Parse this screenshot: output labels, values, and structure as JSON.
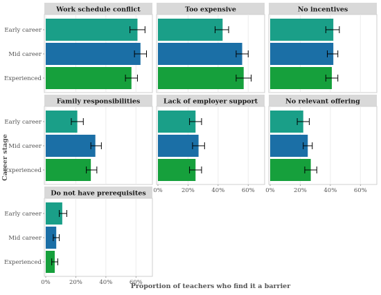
{
  "chart_data": {
    "type": "bar",
    "orientation": "horizontal",
    "xlabel": "Proportion of teachers who find it a barrier",
    "ylabel": "Career stage",
    "categories": [
      "Early career",
      "Mid career",
      "Experienced"
    ],
    "xlim": [
      0,
      0.7
    ],
    "x_ticks": [
      0,
      0.2,
      0.4,
      0.6
    ],
    "x_tick_labels": [
      "0%",
      "20%",
      "40%",
      "60%"
    ],
    "colors": {
      "Early career": "#1a9f88",
      "Mid career": "#1b6fa6",
      "Experienced": "#16a03c"
    },
    "panels": [
      {
        "title": "Work schedule conflict",
        "values": [
          0.61,
          0.63,
          0.57
        ],
        "errors": [
          [
            0.56,
            0.66
          ],
          [
            0.59,
            0.67
          ],
          [
            0.53,
            0.61
          ]
        ]
      },
      {
        "title": "Too expensive",
        "values": [
          0.43,
          0.56,
          0.57
        ],
        "errors": [
          [
            0.38,
            0.47
          ],
          [
            0.52,
            0.6
          ],
          [
            0.52,
            0.62
          ]
        ]
      },
      {
        "title": "No incentives",
        "values": [
          0.42,
          0.42,
          0.41
        ],
        "errors": [
          [
            0.37,
            0.46
          ],
          [
            0.38,
            0.45
          ],
          [
            0.37,
            0.45
          ]
        ]
      },
      {
        "title": "Family responsibilities",
        "values": [
          0.21,
          0.33,
          0.3
        ],
        "errors": [
          [
            0.17,
            0.25
          ],
          [
            0.3,
            0.37
          ],
          [
            0.27,
            0.34
          ]
        ]
      },
      {
        "title": "Lack of employer support",
        "values": [
          0.25,
          0.27,
          0.25
        ],
        "errors": [
          [
            0.21,
            0.29
          ],
          [
            0.23,
            0.31
          ],
          [
            0.21,
            0.29
          ]
        ]
      },
      {
        "title": "No relevant offering",
        "values": [
          0.22,
          0.25,
          0.27
        ],
        "errors": [
          [
            0.18,
            0.26
          ],
          [
            0.22,
            0.28
          ],
          [
            0.23,
            0.31
          ]
        ]
      },
      {
        "title": "Do not have prerequisites",
        "values": [
          0.11,
          0.07,
          0.06
        ],
        "errors": [
          [
            0.09,
            0.14
          ],
          [
            0.05,
            0.09
          ],
          [
            0.04,
            0.08
          ]
        ]
      }
    ]
  }
}
